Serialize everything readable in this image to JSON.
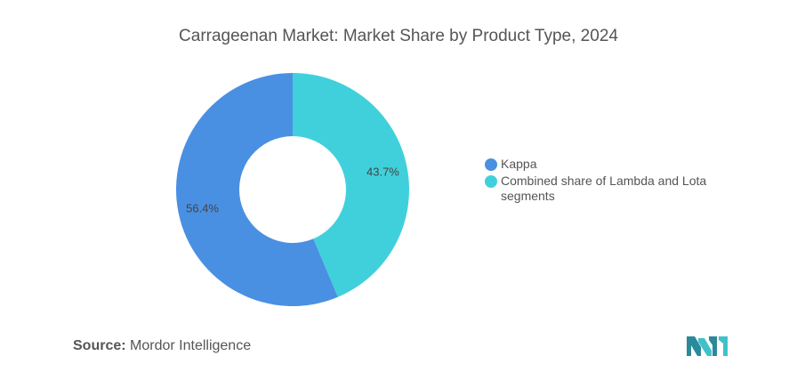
{
  "chart_data": {
    "type": "pie",
    "variant": "donut",
    "title": "Carrageenan Market: Market Share by Product Type, 2024",
    "slices": [
      {
        "label": "Kappa",
        "value": 56.4,
        "display": "56.4%",
        "color": "#4a90e2"
      },
      {
        "label": "Combined share of Lambda and Lota segments",
        "value": 43.7,
        "display": "43.7%",
        "color": "#40d0db"
      }
    ],
    "legend_position": "right"
  },
  "source": {
    "label": "Source:",
    "text": "Mordor Intelligence"
  },
  "logo": {
    "icon": "mordor-intelligence-logo-icon",
    "colors": [
      "#2a8a9a",
      "#3fc1c9"
    ]
  }
}
